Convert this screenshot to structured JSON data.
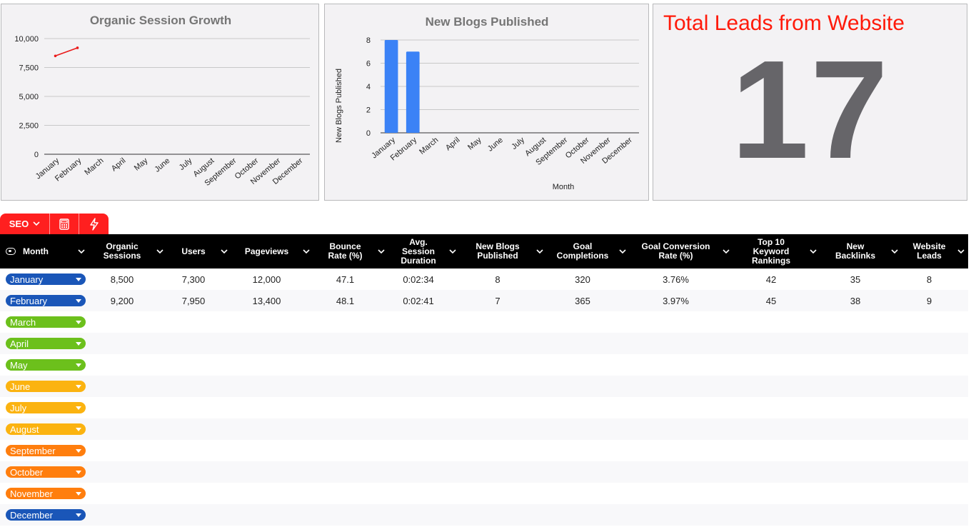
{
  "chart_data": [
    {
      "type": "line",
      "title": "Organic Session Growth",
      "categories": [
        "January",
        "February",
        "March",
        "April",
        "May",
        "June",
        "July",
        "August",
        "September",
        "October",
        "November",
        "December"
      ],
      "series": [
        {
          "values": [
            8500,
            9200,
            null,
            null,
            null,
            null,
            null,
            null,
            null,
            null,
            null,
            null
          ],
          "color": "#ea1a1a"
        }
      ],
      "yticks": [
        "0",
        "2,500",
        "5,000",
        "7,500",
        "10,000"
      ],
      "ylim": [
        0,
        10000
      ],
      "grid": true,
      "xlabel": "",
      "ylabel": ""
    },
    {
      "type": "bar",
      "title": "New Blogs Published",
      "categories": [
        "January",
        "February",
        "March",
        "April",
        "May",
        "June",
        "July",
        "August",
        "September",
        "October",
        "November",
        "December"
      ],
      "values": [
        8,
        7,
        null,
        null,
        null,
        null,
        null,
        null,
        null,
        null,
        null,
        null
      ],
      "color": "#3b82f6",
      "yticks": [
        "0",
        "2",
        "4",
        "6",
        "8"
      ],
      "ylim": [
        0,
        8
      ],
      "grid": true,
      "xlabel": "Month",
      "ylabel": "New Blogs Published"
    }
  ],
  "kpi": {
    "title": "Total Leads from Website",
    "value": "17"
  },
  "tabs": {
    "sheet_label": "SEO"
  },
  "table": {
    "header_month": "Month",
    "columns": [
      [
        "Organic",
        "Sessions"
      ],
      [
        "Users"
      ],
      [
        "Pageviews"
      ],
      [
        "Bounce",
        "Rate (%)"
      ],
      [
        "Avg.",
        "Session",
        "Duration"
      ],
      [
        "New Blogs",
        "Published"
      ],
      [
        "Goal",
        "Completions"
      ],
      [
        "Goal Conversion",
        "Rate (%)"
      ],
      [
        "Top 10",
        "Keyword",
        "Rankings"
      ],
      [
        "New",
        "Backlinks"
      ],
      [
        "Website",
        "Leads"
      ]
    ],
    "rows": [
      {
        "month": "January",
        "color": "#1a56b8",
        "values": [
          "8,500",
          "7,300",
          "12,000",
          "47.1",
          "0:02:34",
          "8",
          "320",
          "3.76%",
          "42",
          "35",
          "8"
        ]
      },
      {
        "month": "February",
        "color": "#1a56b8",
        "values": [
          "9,200",
          "7,950",
          "13,400",
          "48.1",
          "0:02:41",
          "7",
          "365",
          "3.97%",
          "45",
          "38",
          "9"
        ]
      },
      {
        "month": "March",
        "color": "#6cc01c",
        "values": []
      },
      {
        "month": "April",
        "color": "#6cc01c",
        "values": []
      },
      {
        "month": "May",
        "color": "#6cc01c",
        "values": []
      },
      {
        "month": "June",
        "color": "#fbb310",
        "values": []
      },
      {
        "month": "July",
        "color": "#fbb310",
        "values": []
      },
      {
        "month": "August",
        "color": "#fbb310",
        "values": []
      },
      {
        "month": "September",
        "color": "#ff7e0e",
        "values": []
      },
      {
        "month": "October",
        "color": "#ff7e0e",
        "values": []
      },
      {
        "month": "November",
        "color": "#ff7e0e",
        "values": []
      },
      {
        "month": "December",
        "color": "#1a56b8",
        "values": []
      }
    ]
  }
}
